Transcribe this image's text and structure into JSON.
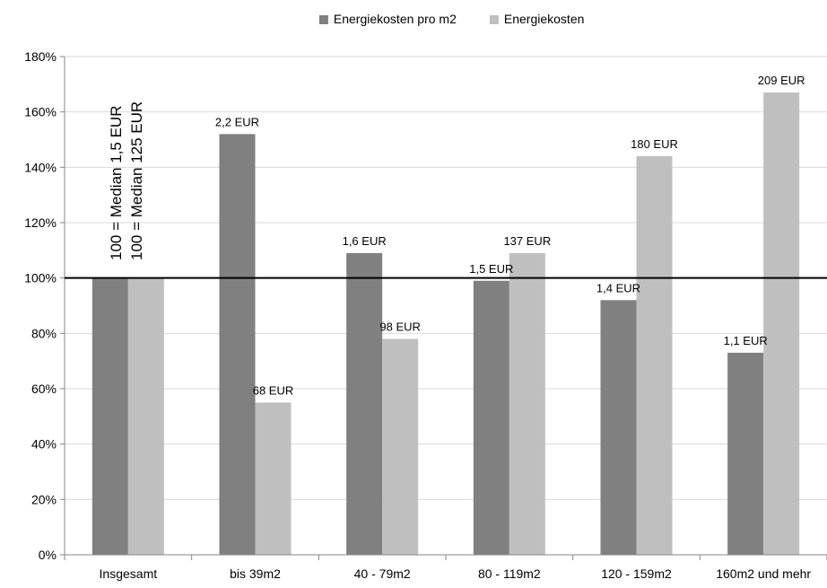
{
  "chart_data": {
    "type": "bar",
    "categories": [
      "Insgesamt",
      "bis 39m2",
      "40 - 79m2",
      "80 - 119m2",
      "120 - 159m2",
      "160m2 und mehr"
    ],
    "series": [
      {
        "name": "Energiekosten pro m2",
        "color": "#808080",
        "values": [
          100,
          152,
          109,
          99,
          92,
          73
        ],
        "labels": [
          "",
          "2,2 EUR",
          "1,6 EUR",
          "1,5 EUR",
          "1,4 EUR",
          "1,1 EUR"
        ]
      },
      {
        "name": "Energiekosten",
        "color": "#bfbfbf",
        "values": [
          100,
          55,
          78,
          109,
          144,
          167
        ],
        "labels": [
          "",
          "68 EUR",
          "98 EUR",
          "137 EUR",
          "180 EUR",
          "209 EUR"
        ]
      }
    ],
    "ylim": [
      0,
      180
    ],
    "yticks": [
      "0%",
      "20%",
      "40%",
      "60%",
      "80%",
      "100%",
      "120%",
      "140%",
      "160%",
      "180%"
    ],
    "reference_line": 100,
    "annotations": [
      "100 = Median 1,5 EUR",
      "100 = Median 125 EUR"
    ],
    "legend_position": "top",
    "grid": true
  }
}
